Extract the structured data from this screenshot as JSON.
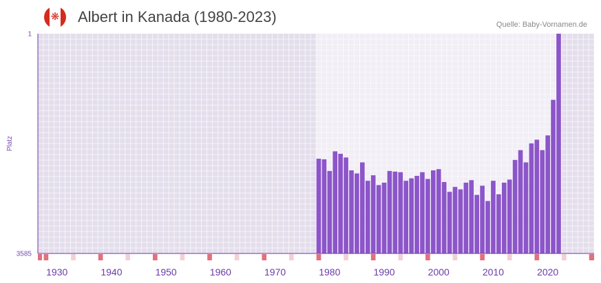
{
  "header": {
    "title": "Albert in Kanada (1980-2023)",
    "source": "Quelle: Baby-Vornamen.de",
    "flag_icon": "canada-flag-icon"
  },
  "colors": {
    "bar": "#8c55c9",
    "plot_bg": "#e4deec",
    "plot_bg_highlight": "#f1eef6",
    "grid": "#ffffff",
    "axis": "#6a3aa8",
    "decade_marker": "#e2707d",
    "half_decade_marker": "#f3d0d5"
  },
  "chart_data": {
    "type": "bar",
    "title": "Albert in Kanada (1980-2023)",
    "xlabel": "",
    "ylabel": "Platz",
    "y_axis_inverted": true,
    "ylim": [
      1,
      3585
    ],
    "xlim": [
      1926.5,
      2028.5
    ],
    "y_ticks": [
      1,
      3585
    ],
    "y_tick_labels": [
      "1",
      "3585"
    ],
    "x_ticks": [
      1930,
      1940,
      1950,
      1960,
      1970,
      1980,
      1990,
      2000,
      2010,
      2020
    ],
    "highlight_range": [
      1977.5,
      2022.5
    ],
    "grid": true,
    "x": [
      1978,
      1979,
      1980,
      1981,
      1982,
      1983,
      1984,
      1985,
      1986,
      1987,
      1988,
      1989,
      1990,
      1991,
      1992,
      1993,
      1994,
      1995,
      1996,
      1997,
      1998,
      1999,
      2000,
      2001,
      2002,
      2003,
      2004,
      2005,
      2006,
      2007,
      2008,
      2009,
      2010,
      2011,
      2012,
      2013,
      2014,
      2015,
      2016,
      2017,
      2018,
      2019,
      2020,
      2021,
      2022
    ],
    "values": [
      2040,
      2050,
      2240,
      1920,
      1960,
      2020,
      2230,
      2280,
      2100,
      2400,
      2310,
      2470,
      2430,
      2240,
      2250,
      2260,
      2400,
      2360,
      2320,
      2260,
      2370,
      2230,
      2210,
      2420,
      2580,
      2500,
      2540,
      2430,
      2390,
      2630,
      2480,
      2730,
      2400,
      2620,
      2430,
      2380,
      2060,
      1900,
      2100,
      1790,
      1730,
      1900,
      1660,
      1080,
      1
    ]
  }
}
